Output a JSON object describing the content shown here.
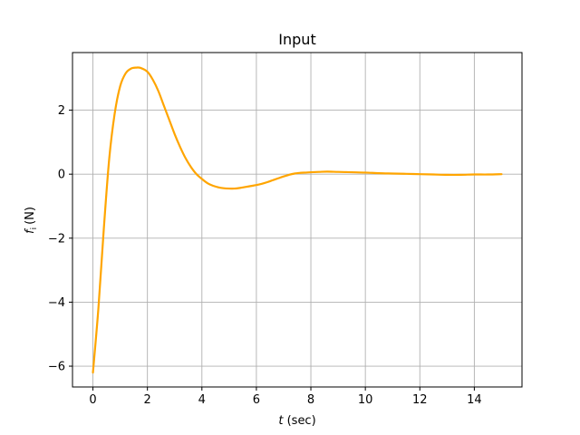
{
  "chart_data": {
    "type": "line",
    "title": "Input",
    "xlabel": {
      "var": "t",
      "unit": "(sec)"
    },
    "ylabel": {
      "var": "f",
      "sub": "i",
      "unit": "(N)"
    },
    "xlim": [
      -0.75,
      15.75
    ],
    "ylim": [
      -6.65,
      3.8
    ],
    "xticks": [
      0,
      2,
      4,
      6,
      8,
      10,
      12,
      14
    ],
    "yticks": [
      -6,
      -4,
      -2,
      0,
      2
    ],
    "ytick_labels": [
      "−6",
      "−4",
      "−2",
      "0",
      "2"
    ],
    "grid": true,
    "color": "#ffa500",
    "series": [
      {
        "x": [
          0,
          0.2,
          0.4,
          0.6,
          0.8,
          1.0,
          1.2,
          1.4,
          1.6,
          1.75,
          2.0,
          2.2,
          2.4,
          2.6,
          2.8,
          3.0,
          3.2,
          3.4,
          3.6,
          3.8,
          4.0,
          4.2,
          4.4,
          4.6,
          4.8,
          5.0,
          5.2,
          5.4,
          5.6,
          5.8,
          6.0,
          6.2,
          6.4,
          6.6,
          6.8,
          7.0,
          7.2,
          7.4,
          7.6,
          7.8,
          8.0,
          8.3,
          8.6,
          9.0,
          9.5,
          10.0,
          10.5,
          11.0,
          11.5,
          12.0,
          12.5,
          13.0,
          13.5,
          14.0,
          14.5,
          15.0
        ],
        "y": [
          -6.2,
          -4.2,
          -1.7,
          0.5,
          1.9,
          2.75,
          3.15,
          3.3,
          3.33,
          3.32,
          3.2,
          2.95,
          2.6,
          2.15,
          1.7,
          1.25,
          0.85,
          0.5,
          0.22,
          0.0,
          -0.15,
          -0.28,
          -0.36,
          -0.41,
          -0.44,
          -0.45,
          -0.45,
          -0.43,
          -0.4,
          -0.37,
          -0.34,
          -0.3,
          -0.25,
          -0.19,
          -0.13,
          -0.07,
          -0.02,
          0.02,
          0.04,
          0.05,
          0.06,
          0.07,
          0.08,
          0.07,
          0.06,
          0.05,
          0.03,
          0.02,
          0.01,
          0.0,
          -0.01,
          -0.02,
          -0.02,
          -0.01,
          -0.01,
          0.0
        ]
      }
    ]
  }
}
